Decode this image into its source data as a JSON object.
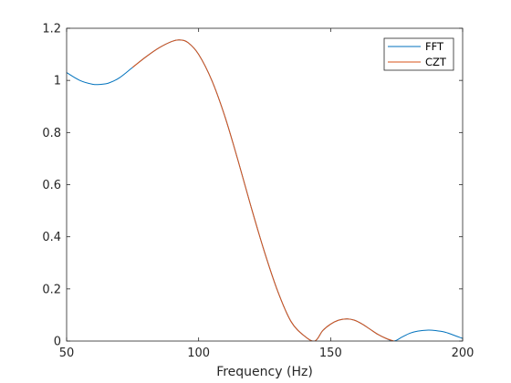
{
  "chart_data": {
    "type": "line",
    "title": "",
    "xlabel": "Frequency (Hz)",
    "ylabel": "",
    "xlim": [
      50,
      200
    ],
    "ylim": [
      0,
      1.2
    ],
    "xticks": [
      50,
      100,
      150,
      200
    ],
    "xtick_labels": [
      "50",
      "100",
      "150",
      "200"
    ],
    "yticks": [
      0,
      0.2,
      0.4,
      0.6,
      0.8,
      1,
      1.2
    ],
    "ytick_labels": [
      "0",
      "0.2",
      "0.4",
      "0.6",
      "0.8",
      "1",
      "1.2"
    ],
    "grid": false,
    "legend_position": "top-right",
    "series": [
      {
        "name": "FFT",
        "color": "#0072BD",
        "x": [
          50,
          55,
          60,
          63,
          66,
          70,
          75,
          80,
          85,
          90,
          93,
          96,
          100,
          105,
          110,
          115,
          120,
          125,
          130,
          135,
          140,
          144,
          147,
          150,
          153,
          156,
          159,
          162,
          165,
          168,
          171,
          174,
          177,
          180,
          183,
          187,
          190,
          193,
          196,
          200
        ],
        "y": [
          1.03,
          1.0,
          0.985,
          0.985,
          0.99,
          1.01,
          1.05,
          1.09,
          1.125,
          1.15,
          1.155,
          1.145,
          1.1,
          1.0,
          0.86,
          0.69,
          0.51,
          0.34,
          0.19,
          0.075,
          0.02,
          0.0,
          0.04,
          0.065,
          0.08,
          0.085,
          0.08,
          0.065,
          0.045,
          0.025,
          0.01,
          0.0,
          0.015,
          0.03,
          0.038,
          0.042,
          0.04,
          0.035,
          0.025,
          0.01
        ]
      },
      {
        "name": "CZT",
        "color": "#D95319",
        "x": [
          75,
          80,
          85,
          90,
          93,
          96,
          100,
          105,
          110,
          115,
          120,
          125,
          130,
          135,
          140,
          144,
          147,
          150,
          153,
          156,
          159,
          162,
          165,
          168,
          171,
          174
        ],
        "y": [
          1.05,
          1.09,
          1.125,
          1.15,
          1.155,
          1.145,
          1.1,
          1.0,
          0.86,
          0.69,
          0.51,
          0.34,
          0.19,
          0.075,
          0.02,
          0.0,
          0.04,
          0.065,
          0.08,
          0.085,
          0.08,
          0.065,
          0.045,
          0.025,
          0.01,
          0.0
        ]
      }
    ]
  }
}
